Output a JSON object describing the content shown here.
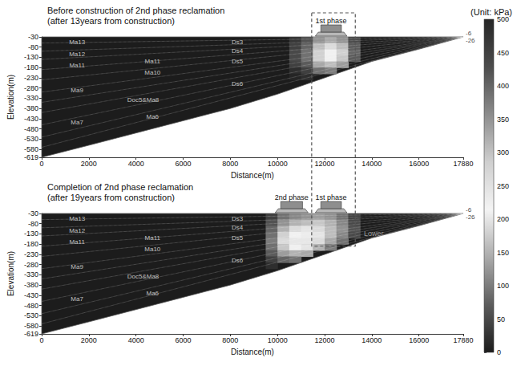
{
  "chart_data": [
    {
      "type": "heatmap",
      "title": "Before construction of 2nd phase reclamation",
      "subtitle": "(after 13years from construction)",
      "x_label": "Distance(m)",
      "y_label": "Elevation(m)",
      "xlim": [
        0,
        17880
      ],
      "xticks": [
        0,
        2000,
        4000,
        6000,
        8000,
        10000,
        12000,
        14000,
        16000,
        17880
      ],
      "ylim": [
        -619,
        -30
      ],
      "yticks": [
        -619,
        -580,
        -530,
        -480,
        -430,
        -380,
        -330,
        -280,
        -230,
        -180,
        -130,
        -80,
        -30
      ],
      "grid": false,
      "surface": [
        [
          0,
          -30
        ],
        [
          17880,
          -30
        ]
      ],
      "bottom": [
        [
          0,
          -619
        ],
        [
          2000,
          -560
        ],
        [
          4000,
          -500
        ],
        [
          6000,
          -440
        ],
        [
          8000,
          -380
        ],
        [
          10000,
          -310
        ],
        [
          12000,
          -230
        ],
        [
          14000,
          -150
        ],
        [
          16000,
          -90
        ],
        [
          17880,
          -30
        ]
      ],
      "layer_boundaries": [
        [
          [
            0,
            -60
          ],
          [
            17880,
            -30
          ]
        ],
        [
          [
            0,
            -100
          ],
          [
            17880,
            -30
          ]
        ],
        [
          [
            0,
            -140
          ],
          [
            17880,
            -30
          ]
        ],
        [
          [
            0,
            -190
          ],
          [
            17880,
            -30
          ]
        ],
        [
          [
            0,
            -240
          ],
          [
            17880,
            -30
          ]
        ],
        [
          [
            0,
            -300
          ],
          [
            17880,
            -30
          ]
        ],
        [
          [
            0,
            -350
          ],
          [
            17880,
            -30
          ]
        ],
        [
          [
            0,
            -400
          ],
          [
            17880,
            -30
          ]
        ],
        [
          [
            0,
            -460
          ],
          [
            17880,
            -30
          ]
        ],
        [
          [
            0,
            -520
          ],
          [
            17880,
            -30
          ]
        ],
        [
          [
            0,
            -570
          ],
          [
            17880,
            -30
          ]
        ]
      ],
      "layer_labels": [
        {
          "text": "Ma13",
          "x": 1500,
          "y": -55
        },
        {
          "text": "Ma12",
          "x": 1500,
          "y": -115
        },
        {
          "text": "Ma11",
          "x": 1500,
          "y": -170
        },
        {
          "text": "Ma9",
          "x": 1500,
          "y": -290
        },
        {
          "text": "Ma7",
          "x": 1500,
          "y": -450
        },
        {
          "text": "Ma11",
          "x": 4700,
          "y": -150
        },
        {
          "text": "Ma10",
          "x": 4700,
          "y": -205
        },
        {
          "text": "Doc5&Ma8",
          "x": 4300,
          "y": -340
        },
        {
          "text": "Ma6",
          "x": 4700,
          "y": -420
        },
        {
          "text": "Ds3",
          "x": 8300,
          "y": -55
        },
        {
          "text": "Ds4",
          "x": 8300,
          "y": -100
        },
        {
          "text": "Ds5",
          "x": 8300,
          "y": -150
        },
        {
          "text": "Ds6",
          "x": 8300,
          "y": -260
        }
      ],
      "end_labels": [
        "-6",
        "-26"
      ],
      "reclamation": [
        {
          "label": "1st phase",
          "x": [
            11600,
            12950
          ]
        }
      ],
      "cell_width": 500,
      "cell_height": 30,
      "cells": [
        [
          10750,
          -45,
          30
        ],
        [
          10750,
          -75,
          40
        ],
        [
          10750,
          -105,
          50
        ],
        [
          10750,
          -135,
          50
        ],
        [
          10750,
          -165,
          40
        ],
        [
          10750,
          -195,
          20
        ],
        [
          10750,
          -225,
          10
        ],
        [
          11250,
          -45,
          60
        ],
        [
          11250,
          -75,
          80
        ],
        [
          11250,
          -105,
          90
        ],
        [
          11250,
          -135,
          90
        ],
        [
          11250,
          -165,
          70
        ],
        [
          11250,
          -195,
          40
        ],
        [
          11250,
          -225,
          20
        ],
        [
          11750,
          -45,
          120
        ],
        [
          11750,
          -75,
          160
        ],
        [
          11750,
          -105,
          180
        ],
        [
          11750,
          -135,
          180
        ],
        [
          11750,
          -165,
          140
        ],
        [
          11750,
          -195,
          90
        ],
        [
          12250,
          -45,
          140
        ],
        [
          12250,
          -75,
          190
        ],
        [
          12250,
          -105,
          220
        ],
        [
          12250,
          -135,
          210
        ],
        [
          12250,
          -165,
          160
        ],
        [
          12250,
          -195,
          100
        ],
        [
          12750,
          -45,
          120
        ],
        [
          12750,
          -75,
          160
        ],
        [
          12750,
          -105,
          180
        ],
        [
          12750,
          -135,
          170
        ],
        [
          12750,
          -165,
          130
        ],
        [
          13250,
          -45,
          50
        ],
        [
          13250,
          -75,
          70
        ],
        [
          13250,
          -105,
          80
        ],
        [
          13250,
          -135,
          70
        ]
      ]
    },
    {
      "type": "heatmap",
      "title": "Completion of 2nd phase reclamation",
      "subtitle": "(after 19years from construction)",
      "x_label": "Distance(m)",
      "y_label": "Elevation(m)",
      "xlim": [
        0,
        17880
      ],
      "xticks": [
        0,
        2000,
        4000,
        6000,
        8000,
        10000,
        12000,
        14000,
        16000,
        17880
      ],
      "ylim": [
        -619,
        -30
      ],
      "yticks": [
        -619,
        -580,
        -530,
        -480,
        -430,
        -380,
        -330,
        -280,
        -230,
        -180,
        -130,
        -80,
        -30
      ],
      "grid": false,
      "surface": [
        [
          0,
          -30
        ],
        [
          17880,
          -30
        ]
      ],
      "bottom": [
        [
          0,
          -619
        ],
        [
          2000,
          -560
        ],
        [
          4000,
          -500
        ],
        [
          6000,
          -440
        ],
        [
          8000,
          -380
        ],
        [
          10000,
          -310
        ],
        [
          12000,
          -230
        ],
        [
          14000,
          -150
        ],
        [
          16000,
          -90
        ],
        [
          17880,
          -30
        ]
      ],
      "layer_boundaries": [
        [
          [
            0,
            -60
          ],
          [
            17880,
            -30
          ]
        ],
        [
          [
            0,
            -100
          ],
          [
            17880,
            -30
          ]
        ],
        [
          [
            0,
            -140
          ],
          [
            17880,
            -30
          ]
        ],
        [
          [
            0,
            -190
          ],
          [
            17880,
            -30
          ]
        ],
        [
          [
            0,
            -240
          ],
          [
            17880,
            -30
          ]
        ],
        [
          [
            0,
            -300
          ],
          [
            17880,
            -30
          ]
        ],
        [
          [
            0,
            -350
          ],
          [
            17880,
            -30
          ]
        ],
        [
          [
            0,
            -400
          ],
          [
            17880,
            -30
          ]
        ],
        [
          [
            0,
            -460
          ],
          [
            17880,
            -30
          ]
        ],
        [
          [
            0,
            -520
          ],
          [
            17880,
            -30
          ]
        ],
        [
          [
            0,
            -570
          ],
          [
            17880,
            -30
          ]
        ]
      ],
      "layer_labels": [
        {
          "text": "Ma13",
          "x": 1500,
          "y": -55
        },
        {
          "text": "Ma12",
          "x": 1500,
          "y": -115
        },
        {
          "text": "Ma11",
          "x": 1500,
          "y": -170
        },
        {
          "text": "Ma9",
          "x": 1500,
          "y": -290
        },
        {
          "text": "Ma7",
          "x": 1500,
          "y": -450
        },
        {
          "text": "Ma11",
          "x": 4700,
          "y": -150
        },
        {
          "text": "Ma10",
          "x": 4700,
          "y": -205
        },
        {
          "text": "Doc5&Ma8",
          "x": 4300,
          "y": -340
        },
        {
          "text": "Ma6",
          "x": 4700,
          "y": -420
        },
        {
          "text": "Ds3",
          "x": 8300,
          "y": -55
        },
        {
          "text": "Ds4",
          "x": 8300,
          "y": -100
        },
        {
          "text": "Ds5",
          "x": 8300,
          "y": -150
        },
        {
          "text": "Ds6",
          "x": 8300,
          "y": -260
        }
      ],
      "end_labels": [
        "-6",
        "-26"
      ],
      "reclamation": [
        {
          "label": "2nd phase",
          "x": [
            9900,
            11300
          ]
        },
        {
          "label": "1st phase",
          "x": [
            11600,
            12950
          ]
        }
      ],
      "annotations": [
        {
          "text": "Lower",
          "x": 13600,
          "y": -130
        }
      ],
      "cell_width": 500,
      "cell_height": 30,
      "cells": [
        [
          9750,
          -45,
          40
        ],
        [
          9750,
          -75,
          60
        ],
        [
          9750,
          -105,
          80
        ],
        [
          9750,
          -135,
          90
        ],
        [
          9750,
          -165,
          100
        ],
        [
          9750,
          -195,
          90
        ],
        [
          9750,
          -225,
          70
        ],
        [
          9750,
          -255,
          40
        ],
        [
          9750,
          -285,
          20
        ],
        [
          10250,
          -45,
          90
        ],
        [
          10250,
          -75,
          120
        ],
        [
          10250,
          -105,
          150
        ],
        [
          10250,
          -135,
          180
        ],
        [
          10250,
          -165,
          190
        ],
        [
          10250,
          -195,
          170
        ],
        [
          10250,
          -225,
          130
        ],
        [
          10250,
          -255,
          80
        ],
        [
          10750,
          -45,
          110
        ],
        [
          10750,
          -75,
          150
        ],
        [
          10750,
          -105,
          190
        ],
        [
          10750,
          -135,
          220
        ],
        [
          10750,
          -165,
          240
        ],
        [
          10750,
          -195,
          210
        ],
        [
          10750,
          -225,
          150
        ],
        [
          10750,
          -255,
          90
        ],
        [
          11250,
          -45,
          120
        ],
        [
          11250,
          -75,
          160
        ],
        [
          11250,
          -105,
          200
        ],
        [
          11250,
          -135,
          230
        ],
        [
          11250,
          -165,
          240
        ],
        [
          11250,
          -195,
          200
        ],
        [
          11250,
          -225,
          140
        ],
        [
          11750,
          -45,
          130
        ],
        [
          11750,
          -75,
          170
        ],
        [
          11750,
          -105,
          190
        ],
        [
          11750,
          -135,
          200
        ],
        [
          11750,
          -165,
          190
        ],
        [
          11750,
          -195,
          150
        ],
        [
          12250,
          -45,
          120
        ],
        [
          12250,
          -75,
          150
        ],
        [
          12250,
          -105,
          160
        ],
        [
          12250,
          -135,
          160
        ],
        [
          12250,
          -165,
          140
        ],
        [
          12250,
          -195,
          100
        ],
        [
          12750,
          -45,
          90
        ],
        [
          12750,
          -75,
          110
        ],
        [
          12750,
          -105,
          120
        ],
        [
          12750,
          -135,
          110
        ],
        [
          12750,
          -165,
          90
        ],
        [
          13250,
          -45,
          40
        ],
        [
          13250,
          -75,
          50
        ],
        [
          13250,
          -105,
          60
        ],
        [
          13250,
          -135,
          50
        ]
      ]
    }
  ],
  "colorbar": {
    "title": "(Unit: kPa)",
    "range": [
      0,
      500
    ],
    "ticks": [
      0,
      50,
      100,
      150,
      200,
      250,
      300,
      350,
      400,
      450,
      500
    ]
  },
  "highlight": {
    "x": [
      11450,
      13300
    ],
    "y_bottom": -190
  }
}
